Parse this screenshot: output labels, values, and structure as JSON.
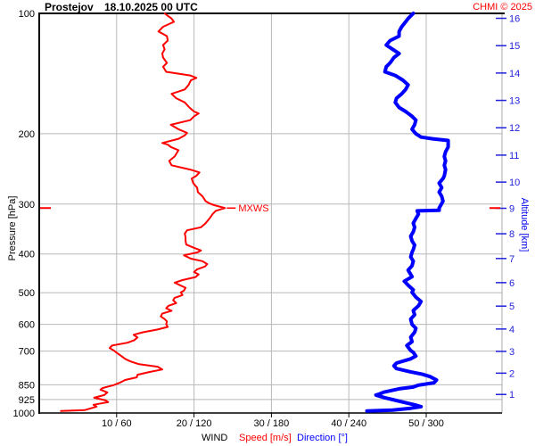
{
  "header": {
    "station": "Prostejov",
    "datetime": "18.10.2025 00 UTC",
    "credit": "CHMI © 2025"
  },
  "colors": {
    "speed": "#ff0000",
    "direction": "#0000ff",
    "credit": "#ff0000",
    "annotation": "#ff0000",
    "grid": "#b8b8b8",
    "axis": "#000000",
    "altitude_axis_line": "#a8a8a8",
    "altitude_text": "#2222dd",
    "background": "#ffffff"
  },
  "chart_data": {
    "type": "line",
    "title": "Prostejov 18.10.2025 00 UTC",
    "grid": true,
    "legend_position": "bottom",
    "y_axis": {
      "label": "Pressure [hPa]",
      "scale": "log",
      "inverted": true,
      "range": [
        100,
        1000
      ],
      "ticks": [
        100,
        200,
        300,
        400,
        500,
        600,
        700,
        850,
        925,
        1000
      ]
    },
    "y2_axis": {
      "label": "Altitude [km]",
      "ticks": [
        1,
        2,
        3,
        4,
        5,
        6,
        7,
        8,
        9,
        10,
        11,
        12,
        13,
        14,
        15,
        16
      ],
      "mapping": "standard-atmosphere"
    },
    "x_axis": {
      "label": "WIND",
      "speed_legend": "Speed [m/s]",
      "direction_legend": "Direction [°]",
      "speed_range": [
        0,
        60
      ],
      "direction_range": [
        0,
        360
      ],
      "speed_ticks": [
        10,
        20,
        30,
        40,
        50
      ],
      "direction_ticks": [
        60,
        120,
        180,
        240,
        300
      ],
      "tick_labels": [
        "10 / 60",
        "20 / 120",
        "30 / 180",
        "40 / 240",
        "50 / 300"
      ]
    },
    "annotations": [
      {
        "text": "MXWS",
        "pressure_hpa": 307,
        "speed_ms": 24.0
      }
    ],
    "series": [
      {
        "name": "Speed [m/s]",
        "axis": "speed",
        "color": "#ff0000",
        "line_width": 2,
        "points_format": [
          "pressure_hPa",
          "speed_m_s"
        ],
        "points": [
          [
            100,
            16.2
          ],
          [
            103,
            17.1
          ],
          [
            105,
            17.4
          ],
          [
            108,
            16.0
          ],
          [
            111,
            15.4
          ],
          [
            114,
            16.5
          ],
          [
            117,
            16.6
          ],
          [
            120,
            16.0
          ],
          [
            123,
            16.2
          ],
          [
            126,
            15.9
          ],
          [
            129,
            16.0
          ],
          [
            133,
            16.5
          ],
          [
            136,
            16.0
          ],
          [
            140,
            16.4
          ],
          [
            143,
            19.5
          ],
          [
            145,
            20.3
          ],
          [
            147,
            19.6
          ],
          [
            151,
            19.3
          ],
          [
            155,
            18.8
          ],
          [
            159,
            17.1
          ],
          [
            163,
            17.7
          ],
          [
            167,
            18.8
          ],
          [
            172,
            19.4
          ],
          [
            176,
            20.0
          ],
          [
            178,
            20.6
          ],
          [
            181,
            20.0
          ],
          [
            185,
            19.5
          ],
          [
            190,
            17.0
          ],
          [
            195,
            18.0
          ],
          [
            199,
            19.1
          ],
          [
            202,
            18.8
          ],
          [
            206,
            18.0
          ],
          [
            211,
            15.9
          ],
          [
            213,
            16.6
          ],
          [
            216,
            17.0
          ],
          [
            220,
            18.0
          ],
          [
            228,
            17.5
          ],
          [
            234,
            16.8
          ],
          [
            240,
            17.1
          ],
          [
            246,
            19.5
          ],
          [
            250,
            20.7
          ],
          [
            255,
            20.3
          ],
          [
            259,
            19.7
          ],
          [
            266,
            19.9
          ],
          [
            273,
            20.4
          ],
          [
            280,
            20.5
          ],
          [
            287,
            21.1
          ],
          [
            295,
            21.5
          ],
          [
            299,
            22.0
          ],
          [
            302,
            22.6
          ],
          [
            307,
            24.0
          ],
          [
            312,
            22.8
          ],
          [
            318,
            22.4
          ],
          [
            326,
            22.0
          ],
          [
            335,
            21.5
          ],
          [
            343,
            20.9
          ],
          [
            349,
            19.1
          ],
          [
            356,
            18.8
          ],
          [
            363,
            18.9
          ],
          [
            371,
            18.9
          ],
          [
            379,
            19.0
          ],
          [
            386,
            20.0
          ],
          [
            392,
            20.9
          ],
          [
            396,
            20.5
          ],
          [
            403,
            18.7
          ],
          [
            411,
            19.6
          ],
          [
            417,
            21.1
          ],
          [
            424,
            21.7
          ],
          [
            430,
            21.4
          ],
          [
            437,
            20.4
          ],
          [
            444,
            20.0
          ],
          [
            450,
            20.6
          ],
          [
            457,
            20.2
          ],
          [
            465,
            18.5
          ],
          [
            472,
            17.5
          ],
          [
            479,
            18.2
          ],
          [
            486,
            18.9
          ],
          [
            494,
            18.7
          ],
          [
            499,
            18.3
          ],
          [
            507,
            18.5
          ],
          [
            515,
            17.5
          ],
          [
            522,
            17.3
          ],
          [
            531,
            17.7
          ],
          [
            539,
            16.7
          ],
          [
            547,
            16.4
          ],
          [
            555,
            17.1
          ],
          [
            564,
            15.9
          ],
          [
            573,
            15.7
          ],
          [
            582,
            16.2
          ],
          [
            590,
            16.5
          ],
          [
            600,
            16.4
          ],
          [
            609,
            16.6
          ],
          [
            618,
            15.3
          ],
          [
            628,
            13.4
          ],
          [
            637,
            12.2
          ],
          [
            647,
            12.7
          ],
          [
            657,
            12.3
          ],
          [
            667,
            11.4
          ],
          [
            678,
            9.4
          ],
          [
            688,
            9.1
          ],
          [
            699,
            9.7
          ],
          [
            709,
            10.1
          ],
          [
            720,
            10.6
          ],
          [
            732,
            11.1
          ],
          [
            743,
            11.8
          ],
          [
            754,
            12.8
          ],
          [
            766,
            15.3
          ],
          [
            778,
            15.9
          ],
          [
            790,
            14.2
          ],
          [
            802,
            12.7
          ],
          [
            814,
            12.6
          ],
          [
            827,
            11.1
          ],
          [
            840,
            10.4
          ],
          [
            852,
            9.6
          ],
          [
            866,
            8.2
          ],
          [
            874,
            7.9
          ],
          [
            888,
            8.8
          ],
          [
            902,
            8.4
          ],
          [
            916,
            7.1
          ],
          [
            930,
            8.6
          ],
          [
            939,
            8.9
          ],
          [
            954,
            7.0
          ],
          [
            964,
            7.4
          ],
          [
            983,
            5.9
          ],
          [
            988,
            2.8
          ]
        ]
      },
      {
        "name": "Direction [°]",
        "axis": "direction",
        "color": "#0000ff",
        "line_width": 4,
        "points_format": [
          "pressure_hPa",
          "direction_deg"
        ],
        "points": [
          [
            100,
            290
          ],
          [
            103,
            286
          ],
          [
            105,
            284
          ],
          [
            108,
            281
          ],
          [
            111,
            279
          ],
          [
            114,
            279
          ],
          [
            117,
            272
          ],
          [
            120,
            269
          ],
          [
            123,
            274
          ],
          [
            126,
            279
          ],
          [
            129,
            275
          ],
          [
            133,
            272
          ],
          [
            136,
            269
          ],
          [
            140,
            268
          ],
          [
            143,
            276
          ],
          [
            147,
            282
          ],
          [
            151,
            286
          ],
          [
            155,
            284
          ],
          [
            159,
            281
          ],
          [
            163,
            277
          ],
          [
            167,
            276
          ],
          [
            172,
            279
          ],
          [
            176,
            284
          ],
          [
            181,
            289
          ],
          [
            185,
            292
          ],
          [
            190,
            291
          ],
          [
            195,
            289
          ],
          [
            200,
            292
          ],
          [
            204,
            296
          ],
          [
            206,
            305
          ],
          [
            208,
            317
          ],
          [
            216,
            317
          ],
          [
            222,
            315
          ],
          [
            228,
            314
          ],
          [
            234,
            315
          ],
          [
            240,
            314
          ],
          [
            246,
            315
          ],
          [
            255,
            314
          ],
          [
            259,
            313
          ],
          [
            266,
            310
          ],
          [
            273,
            312
          ],
          [
            280,
            310
          ],
          [
            287,
            312
          ],
          [
            295,
            313
          ],
          [
            299,
            312
          ],
          [
            307,
            310
          ],
          [
            311,
            310
          ],
          [
            312,
            293
          ],
          [
            318,
            294
          ],
          [
            326,
            292
          ],
          [
            335,
            290
          ],
          [
            343,
            291
          ],
          [
            352,
            290
          ],
          [
            361,
            288
          ],
          [
            371,
            289
          ],
          [
            380,
            291
          ],
          [
            390,
            290
          ],
          [
            396,
            289
          ],
          [
            407,
            288
          ],
          [
            417,
            290
          ],
          [
            428,
            289
          ],
          [
            439,
            286
          ],
          [
            456,
            289
          ],
          [
            468,
            283
          ],
          [
            479,
            286
          ],
          [
            492,
            290
          ],
          [
            499,
            289
          ],
          [
            513,
            292
          ],
          [
            526,
            296
          ],
          [
            539,
            294
          ],
          [
            554,
            290
          ],
          [
            568,
            291
          ],
          [
            582,
            288
          ],
          [
            600,
            289
          ],
          [
            614,
            292
          ],
          [
            628,
            291
          ],
          [
            646,
            288
          ],
          [
            663,
            289
          ],
          [
            678,
            285
          ],
          [
            698,
            288
          ],
          [
            705,
            290
          ],
          [
            720,
            292
          ],
          [
            732,
            288
          ],
          [
            750,
            277
          ],
          [
            762,
            275
          ],
          [
            774,
            277
          ],
          [
            789,
            288
          ],
          [
            800,
            297
          ],
          [
            811,
            303
          ],
          [
            827,
            308
          ],
          [
            840,
            306
          ],
          [
            852,
            294
          ],
          [
            861,
            290
          ],
          [
            870,
            279
          ],
          [
            887,
            267
          ],
          [
            898,
            263
          ],
          [
            902,
            261
          ],
          [
            916,
            268
          ],
          [
            926,
            274
          ],
          [
            939,
            282
          ],
          [
            954,
            291
          ],
          [
            964,
            296
          ],
          [
            973,
            288
          ],
          [
            983,
            274
          ],
          [
            988,
            254
          ]
        ]
      }
    ]
  }
}
